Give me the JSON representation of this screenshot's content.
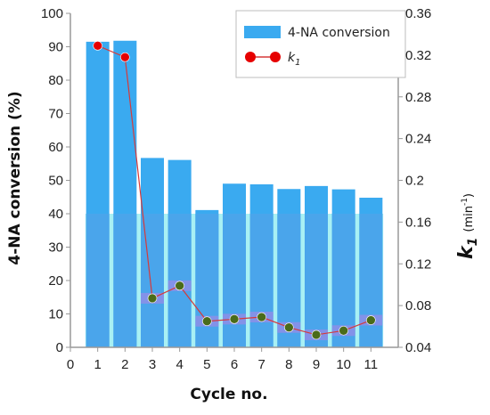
{
  "chart_data": {
    "type": "bar",
    "xlabel": "Cycle no.",
    "ylabel": "4-NA conversion (%)",
    "y2label_main": "k",
    "y2label_sub": "1",
    "y2label_unit": "(min",
    "y2label_unit_exp": "-1",
    "y2label_unit_close": ")",
    "xlim": [
      0,
      12
    ],
    "x_ticks": [
      "0",
      "1",
      "2",
      "3",
      "4",
      "5",
      "6",
      "7",
      "8",
      "9",
      "10",
      "11"
    ],
    "ylim": [
      0,
      100
    ],
    "y_ticks": [
      "0",
      "10",
      "20",
      "30",
      "40",
      "50",
      "60",
      "70",
      "80",
      "90",
      "100"
    ],
    "y2lim": [
      0.04,
      0.36
    ],
    "y2_ticks": [
      "0.04",
      "0.08",
      "0.12",
      "0.16",
      "0.2",
      "0.24",
      "0.28",
      "0.32",
      "0.36"
    ],
    "x": [
      1,
      2,
      3,
      4,
      5,
      6,
      7,
      8,
      9,
      10,
      11
    ],
    "series": [
      {
        "name": "4-NA conversion",
        "kind": "bar",
        "axis": "left",
        "values": [
          91.5,
          91.8,
          56.7,
          56.1,
          41.1,
          49.0,
          48.8,
          47.4,
          48.3,
          47.3,
          44.8
        ]
      },
      {
        "name": "k",
        "name_sub": "1",
        "kind": "line-marker",
        "axis": "right",
        "values": [
          0.329,
          0.318,
          0.087,
          0.099,
          0.065,
          0.067,
          0.069,
          0.059,
          0.052,
          0.056,
          0.066
        ]
      }
    ],
    "legend_position": "top-right",
    "grid": false,
    "colors": {
      "bar": "#3aaaf0",
      "bar_lower": "#4da5ea",
      "bar_halo": "#a8f0f4",
      "line": "#d63a3a",
      "marker_first": "#e60000",
      "marker": "#4a6b1a",
      "marker_band": "#b383e6",
      "axis": "#999999"
    }
  }
}
